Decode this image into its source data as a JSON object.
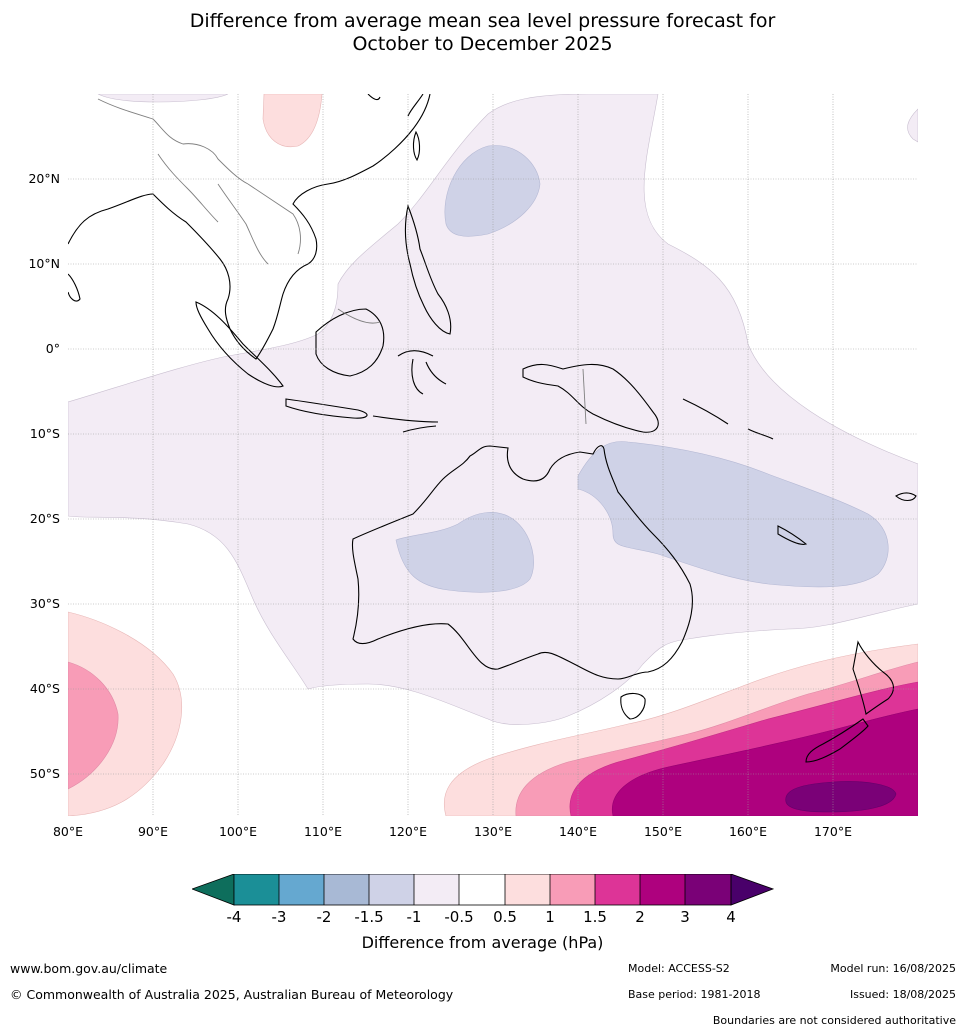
{
  "title_line1": "Difference from average mean sea level pressure forecast for",
  "title_line2": "October to December 2025",
  "map": {
    "region": "Australia, Maritime Continent and Southwest Pacific",
    "lon_range": [
      80,
      180
    ],
    "lat_range": [
      -55,
      30
    ],
    "gridlines": true,
    "lat_labels": [
      "20°N",
      "10°N",
      "0°",
      "10°S",
      "20°S",
      "30°S",
      "40°S",
      "50°S"
    ],
    "lon_labels": [
      "80°E",
      "90°E",
      "100°E",
      "110°E",
      "120°E",
      "130°E",
      "140°E",
      "150°E",
      "160°E",
      "170°E"
    ]
  },
  "colorbar": {
    "title": "Difference from average (hPa)",
    "tick_labels": [
      "-4",
      "-3",
      "-2",
      "-1.5",
      "-1",
      "-0.5",
      "0.5",
      "1",
      "1.5",
      "2",
      "3",
      "4"
    ],
    "colors": {
      "below_min": "#0e6e5c",
      "m4_m3": "#1b8f97",
      "m3_m2": "#65a8d0",
      "m2_m15": "#a8b9d5",
      "m15_m1": "#cfd2e7",
      "m1_m05": "#f3ecf5",
      "m05_05": "#ffffff",
      "p05_1": "#fddede",
      "p1_15": "#f89cb7",
      "p15_2": "#dd3497",
      "p2_3": "#ae017e",
      "p3_4": "#7a0177",
      "above_max": "#49006a"
    }
  },
  "footer": {
    "website": "www.bom.gov.au/climate",
    "copyright": "© Commonwealth of Australia 2025, Australian Bureau of Meteorology",
    "model": "Model: ACCESS-S2",
    "base_period": "Base period: 1981-2018",
    "model_run": "Model run: 16/08/2025",
    "issued": "Issued: 18/08/2025",
    "disclaimer": "Boundaries are not considered authoritative"
  }
}
